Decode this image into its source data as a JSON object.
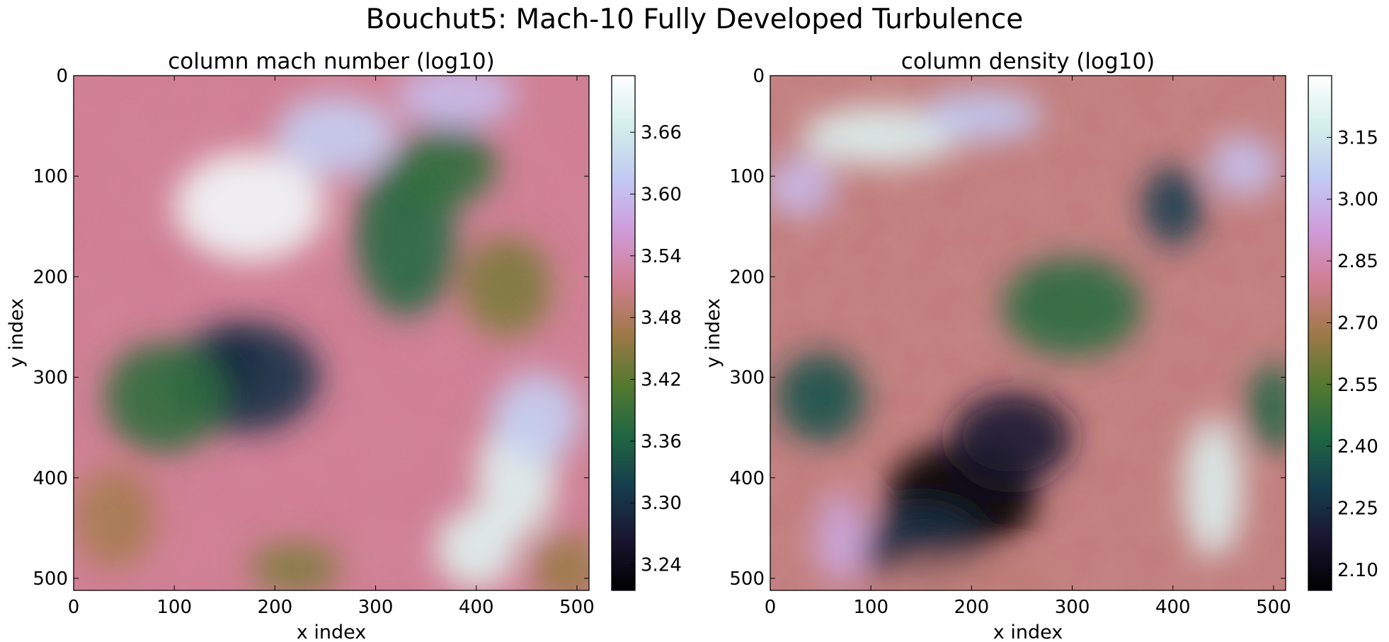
{
  "figure": {
    "title": "Bouchut5: Mach-10 Fully Developed Turbulence"
  },
  "colormap": {
    "name": "cubehelix",
    "stops": [
      "#000000",
      "#1a1530",
      "#163d4e",
      "#1f6642",
      "#54792f",
      "#a07949",
      "#d07e93",
      "#cf9cda",
      "#c1caf3",
      "#d2eeea",
      "#ffffff"
    ]
  },
  "chart_data": [
    {
      "type": "heatmap",
      "title": "column mach number (log10)",
      "xlabel": "x index",
      "ylabel": "y index",
      "xlim": [
        0,
        512
      ],
      "ylim": [
        512,
        0
      ],
      "xticks": [
        0,
        100,
        200,
        300,
        400,
        500
      ],
      "yticks": [
        0,
        100,
        200,
        300,
        400,
        500
      ],
      "grid": false,
      "colorbar": {
        "range": [
          3.215,
          3.715
        ],
        "ticks": [
          "3.24",
          "3.30",
          "3.36",
          "3.42",
          "3.48",
          "3.54",
          "3.60",
          "3.66"
        ]
      },
      "features": [
        {
          "x": 175,
          "y": 130,
          "value": 3.7,
          "sx": 75,
          "sy": 55
        },
        {
          "x": 260,
          "y": 60,
          "value": 3.62,
          "sx": 60,
          "sy": 40
        },
        {
          "x": 380,
          "y": 20,
          "value": 3.6,
          "sx": 60,
          "sy": 30
        },
        {
          "x": 440,
          "y": 400,
          "value": 3.68,
          "sx": 40,
          "sy": 60
        },
        {
          "x": 400,
          "y": 470,
          "value": 3.68,
          "sx": 40,
          "sy": 40
        },
        {
          "x": 460,
          "y": 340,
          "value": 3.62,
          "sx": 45,
          "sy": 45
        },
        {
          "x": 160,
          "y": 285,
          "value": 3.22,
          "sx": 22,
          "sy": 35
        },
        {
          "x": 170,
          "y": 300,
          "value": 3.3,
          "sx": 75,
          "sy": 55
        },
        {
          "x": 90,
          "y": 320,
          "value": 3.38,
          "sx": 60,
          "sy": 55
        },
        {
          "x": 330,
          "y": 160,
          "value": 3.37,
          "sx": 50,
          "sy": 80
        },
        {
          "x": 370,
          "y": 90,
          "value": 3.38,
          "sx": 50,
          "sy": 40
        },
        {
          "x": 430,
          "y": 210,
          "value": 3.44,
          "sx": 45,
          "sy": 50
        },
        {
          "x": 220,
          "y": 490,
          "value": 3.44,
          "sx": 45,
          "sy": 25
        },
        {
          "x": 40,
          "y": 440,
          "value": 3.47,
          "sx": 40,
          "sy": 50
        },
        {
          "x": 490,
          "y": 490,
          "value": 3.46,
          "sx": 35,
          "sy": 35
        }
      ]
    },
    {
      "type": "heatmap",
      "title": "column density (log10)",
      "xlabel": "x index",
      "ylabel": "y index",
      "xlim": [
        0,
        512
      ],
      "ylim": [
        512,
        0
      ],
      "xticks": [
        0,
        100,
        200,
        300,
        400,
        500
      ],
      "yticks": [
        0,
        100,
        200,
        300,
        400,
        500
      ],
      "grid": false,
      "colorbar": {
        "range": [
          2.05,
          3.3
        ],
        "ticks": [
          "2.10",
          "2.25",
          "2.40",
          "2.55",
          "2.70",
          "2.85",
          "3.00",
          "3.15"
        ]
      },
      "features": [
        {
          "x": 190,
          "y": 420,
          "value": 2.06,
          "sx": 75,
          "sy": 55
        },
        {
          "x": 240,
          "y": 360,
          "value": 2.18,
          "sx": 60,
          "sy": 45
        },
        {
          "x": 150,
          "y": 470,
          "value": 2.25,
          "sx": 60,
          "sy": 40
        },
        {
          "x": 400,
          "y": 130,
          "value": 2.3,
          "sx": 30,
          "sy": 40
        },
        {
          "x": 50,
          "y": 320,
          "value": 2.36,
          "sx": 45,
          "sy": 45
        },
        {
          "x": 300,
          "y": 230,
          "value": 2.45,
          "sx": 70,
          "sy": 50
        },
        {
          "x": 500,
          "y": 330,
          "value": 2.42,
          "sx": 25,
          "sy": 45
        },
        {
          "x": 110,
          "y": 60,
          "value": 3.2,
          "sx": 80,
          "sy": 30
        },
        {
          "x": 210,
          "y": 40,
          "value": 3.05,
          "sx": 60,
          "sy": 25
        },
        {
          "x": 440,
          "y": 410,
          "value": 3.2,
          "sx": 30,
          "sy": 70
        },
        {
          "x": 470,
          "y": 90,
          "value": 3.02,
          "sx": 35,
          "sy": 30
        },
        {
          "x": 30,
          "y": 110,
          "value": 3.0,
          "sx": 35,
          "sy": 30
        },
        {
          "x": 70,
          "y": 460,
          "value": 2.95,
          "sx": 25,
          "sy": 45
        },
        {
          "x": 200,
          "y": 500,
          "value": 2.75,
          "sx": 90,
          "sy": 20
        }
      ]
    }
  ]
}
